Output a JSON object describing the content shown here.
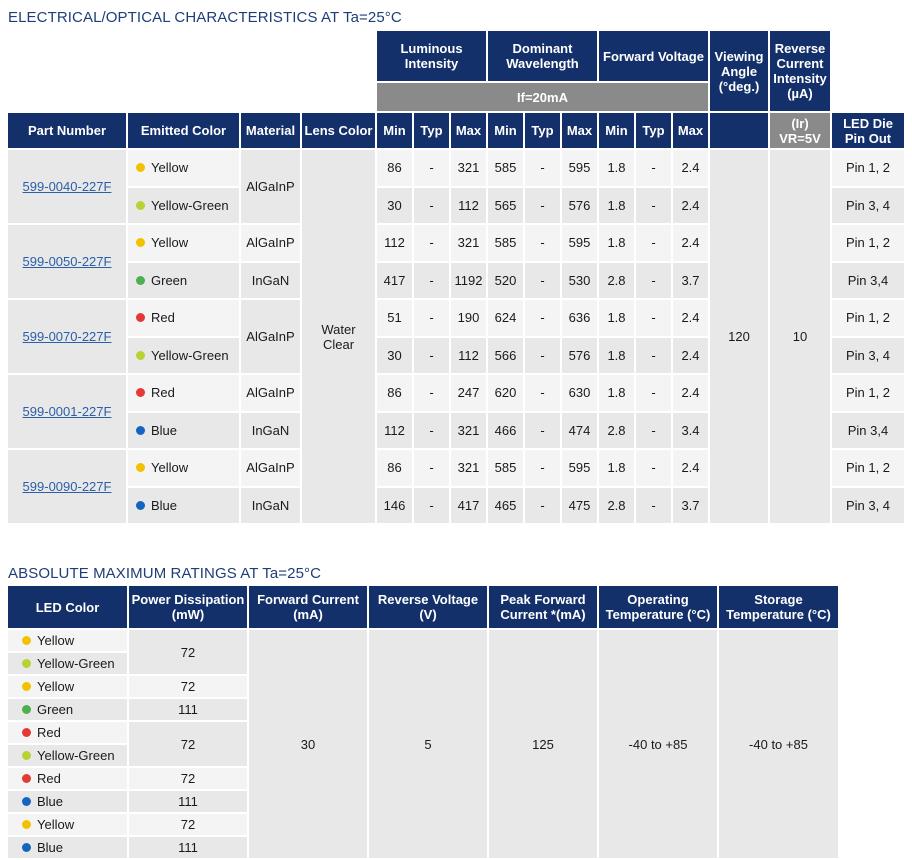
{
  "section1": {
    "title": "ELECTRICAL/OPTICAL CHARACTERISTICS AT Ta=25°C",
    "headers": {
      "luminous_intensity": "Luminous Intensity",
      "dominant_wavelength": "Dominant Wavelength",
      "forward_voltage": "Forward Voltage",
      "viewing_angle": "Viewing Angle (°deg.)",
      "reverse_current": "Reverse Current Intensity (µA)",
      "if_condition": "If=20mA",
      "ir_condition": "(Ir) VR=5V",
      "part_number": "Part Number",
      "emitted_color": "Emitted Color",
      "material": "Material",
      "lens_color": "Lens Color",
      "min": "Min",
      "typ": "Typ",
      "max": "Max",
      "led_die_pin_out": "LED Die Pin Out"
    },
    "lens_color_value": "Water Clear",
    "viewing_angle_value": "120",
    "reverse_current_value": "10",
    "colors": {
      "Yellow": "#f2c200",
      "Yellow-Green": "#b5d333",
      "Green": "#4caf50",
      "Red": "#e53935",
      "Blue": "#1565c0"
    },
    "parts": [
      {
        "part": "599-0040-227F",
        "rows": [
          {
            "color": "Yellow",
            "li": [
              "86",
              "-",
              "321"
            ],
            "dw": [
              "585",
              "-",
              "595"
            ],
            "fv": [
              "1.8",
              "-",
              "2.4"
            ],
            "pin": "Pin 1, 2"
          },
          {
            "color": "Yellow-Green",
            "li": [
              "30",
              "-",
              "112"
            ],
            "dw": [
              "565",
              "-",
              "576"
            ],
            "fv": [
              "1.8",
              "-",
              "2.4"
            ],
            "pin": "Pin 3, 4"
          }
        ],
        "material_merged": "AlGaInP"
      },
      {
        "part": "599-0050-227F",
        "rows": [
          {
            "color": "Yellow",
            "material": "AlGaInP",
            "li": [
              "112",
              "-",
              "321"
            ],
            "dw": [
              "585",
              "-",
              "595"
            ],
            "fv": [
              "1.8",
              "-",
              "2.4"
            ],
            "pin": "Pin 1, 2"
          },
          {
            "color": "Green",
            "material": "InGaN",
            "li": [
              "417",
              "-",
              "1192"
            ],
            "dw": [
              "520",
              "-",
              "530"
            ],
            "fv": [
              "2.8",
              "-",
              "3.7"
            ],
            "pin": "Pin 3,4"
          }
        ]
      },
      {
        "part": "599-0070-227F",
        "rows": [
          {
            "color": "Red",
            "li": [
              "51",
              "-",
              "190"
            ],
            "dw": [
              "624",
              "-",
              "636"
            ],
            "fv": [
              "1.8",
              "-",
              "2.4"
            ],
            "pin": "Pin 1, 2"
          },
          {
            "color": "Yellow-Green",
            "li": [
              "30",
              "-",
              "112"
            ],
            "dw": [
              "566",
              "-",
              "576"
            ],
            "fv": [
              "1.8",
              "-",
              "2.4"
            ],
            "pin": "Pin 3, 4"
          }
        ],
        "material_merged": "AlGaInP"
      },
      {
        "part": "599-0001-227F",
        "rows": [
          {
            "color": "Red",
            "material": "AlGaInP",
            "li": [
              "86",
              "-",
              "247"
            ],
            "dw": [
              "620",
              "-",
              "630"
            ],
            "fv": [
              "1.8",
              "-",
              "2.4"
            ],
            "pin": "Pin 1, 2"
          },
          {
            "color": "Blue",
            "material": "InGaN",
            "li": [
              "112",
              "-",
              "321"
            ],
            "dw": [
              "466",
              "-",
              "474"
            ],
            "fv": [
              "2.8",
              "-",
              "3.4"
            ],
            "pin": "Pin 3,4"
          }
        ]
      },
      {
        "part": "599-0090-227F",
        "rows": [
          {
            "color": "Yellow",
            "material": "AlGaInP",
            "li": [
              "86",
              "-",
              "321"
            ],
            "dw": [
              "585",
              "-",
              "595"
            ],
            "fv": [
              "1.8",
              "-",
              "2.4"
            ],
            "pin": "Pin 1, 2"
          },
          {
            "color": "Blue",
            "material": "InGaN",
            "li": [
              "146",
              "-",
              "417"
            ],
            "dw": [
              "465",
              "-",
              "475"
            ],
            "fv": [
              "2.8",
              "-",
              "3.7"
            ],
            "pin": "Pin 3, 4"
          }
        ]
      }
    ]
  },
  "section2": {
    "title": "ABSOLUTE MAXIMUM RATINGS AT Ta=25°C",
    "headers": {
      "led_color": "LED Color",
      "power_dissipation": "Power Dissipation (mW)",
      "forward_current": "Forward Current (mA)",
      "reverse_voltage": "Reverse Voltage (V)",
      "peak_forward_current": "Peak Forward Current *(mA)",
      "operating_temp": "Operating Temperature (°C)",
      "storage_temp": "Storage Temperature (°C)"
    },
    "forward_current_value": "30",
    "reverse_voltage_value": "5",
    "peak_forward_current_value": "125",
    "operating_temp_value": "-40 to +85",
    "storage_temp_value": "-40 to +85",
    "groups": [
      {
        "colors": [
          "Yellow",
          "Yellow-Green"
        ],
        "power": [
          "72"
        ],
        "merged": true
      },
      {
        "colors": [
          "Yellow",
          "Green"
        ],
        "power": [
          "72",
          "111"
        ],
        "merged": false
      },
      {
        "colors": [
          "Red",
          "Yellow-Green"
        ],
        "power": [
          "72"
        ],
        "merged": true
      },
      {
        "colors": [
          "Red",
          "Blue"
        ],
        "power": [
          "72",
          "111"
        ],
        "merged": false
      },
      {
        "colors": [
          "Yellow",
          "Blue"
        ],
        "power": [
          "72",
          "111"
        ],
        "merged": false
      }
    ]
  }
}
